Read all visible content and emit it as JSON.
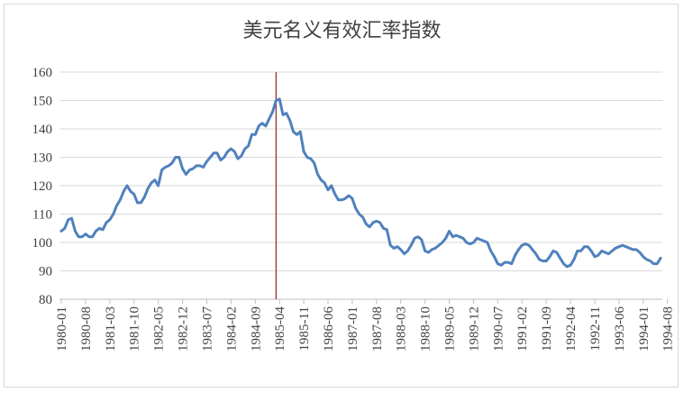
{
  "chart_data": {
    "type": "line",
    "title": "美元名义有效汇率指数",
    "xlabel": "",
    "ylabel": "",
    "ylim": [
      80,
      160
    ],
    "yticks": [
      80,
      90,
      100,
      110,
      120,
      130,
      140,
      150,
      160
    ],
    "x_tick_labels": [
      "1980-01",
      "1980-08",
      "1981-03",
      "1981-10",
      "1982-05",
      "1982-12",
      "1983-07",
      "1984-02",
      "1984-09",
      "1985-04",
      "1985-11",
      "1986-06",
      "1987-01",
      "1987-08",
      "1988-03",
      "1988-10",
      "1989-05",
      "1989-12",
      "1990-07",
      "1991-02",
      "1991-09",
      "1992-04",
      "1992-11",
      "1993-06",
      "1994-01",
      "1994-08"
    ],
    "x_start": "1980-01",
    "x_end": "1994-12",
    "grid": "horizontal",
    "colors": {
      "line": "#4f81bd",
      "marker_line": "#8b2323",
      "grid": "#d9d9d9",
      "axis": "#404040"
    },
    "vertical_marker": {
      "x": "1985-03"
    },
    "series": [
      {
        "values": [
          104,
          105,
          108,
          108.5,
          104,
          102,
          102,
          103,
          102,
          102,
          104,
          105,
          104.5,
          107,
          108,
          110,
          113,
          115,
          118,
          120,
          118,
          117,
          114,
          114,
          116,
          119,
          121,
          122,
          120,
          125.5,
          126.5,
          127,
          128,
          130,
          130,
          126,
          124,
          125.5,
          126,
          127,
          127,
          126.5,
          128.5,
          130,
          131.5,
          131.5,
          129,
          130,
          132,
          133,
          132,
          129.5,
          130.5,
          133,
          134,
          138,
          138,
          141,
          142,
          141,
          143.5,
          146,
          150,
          150.5,
          145,
          145.5,
          143,
          139,
          138,
          139,
          132,
          130,
          129.5,
          128,
          124,
          122,
          121,
          118.5,
          120,
          117,
          115,
          115,
          115.5,
          116.5,
          115.5,
          112,
          110,
          109,
          106.5,
          105.5,
          107,
          107.5,
          107,
          105,
          104.5,
          99,
          98,
          98.5,
          97.5,
          96,
          97,
          99,
          101.5,
          102,
          101,
          97,
          96.5,
          97.5,
          98,
          99,
          100,
          101.5,
          104,
          102,
          102.5,
          102,
          101.5,
          100,
          99.5,
          100,
          101.5,
          101,
          100.5,
          100,
          97,
          95,
          92.5,
          92,
          93,
          93,
          92.5,
          95.5,
          97.5,
          99,
          99.5,
          99,
          97.5,
          96,
          94,
          93.5,
          93.5,
          95,
          97,
          96.5,
          94.5,
          92.5,
          91.5,
          92,
          94,
          97,
          97,
          98.5,
          98.5,
          97,
          95,
          95.5,
          97,
          96.5,
          96,
          97,
          98,
          98.5,
          99,
          98.5,
          98,
          97.5,
          97.5,
          96.5,
          95,
          94,
          93.5,
          92.5,
          92.5,
          94.5
        ]
      }
    ]
  }
}
